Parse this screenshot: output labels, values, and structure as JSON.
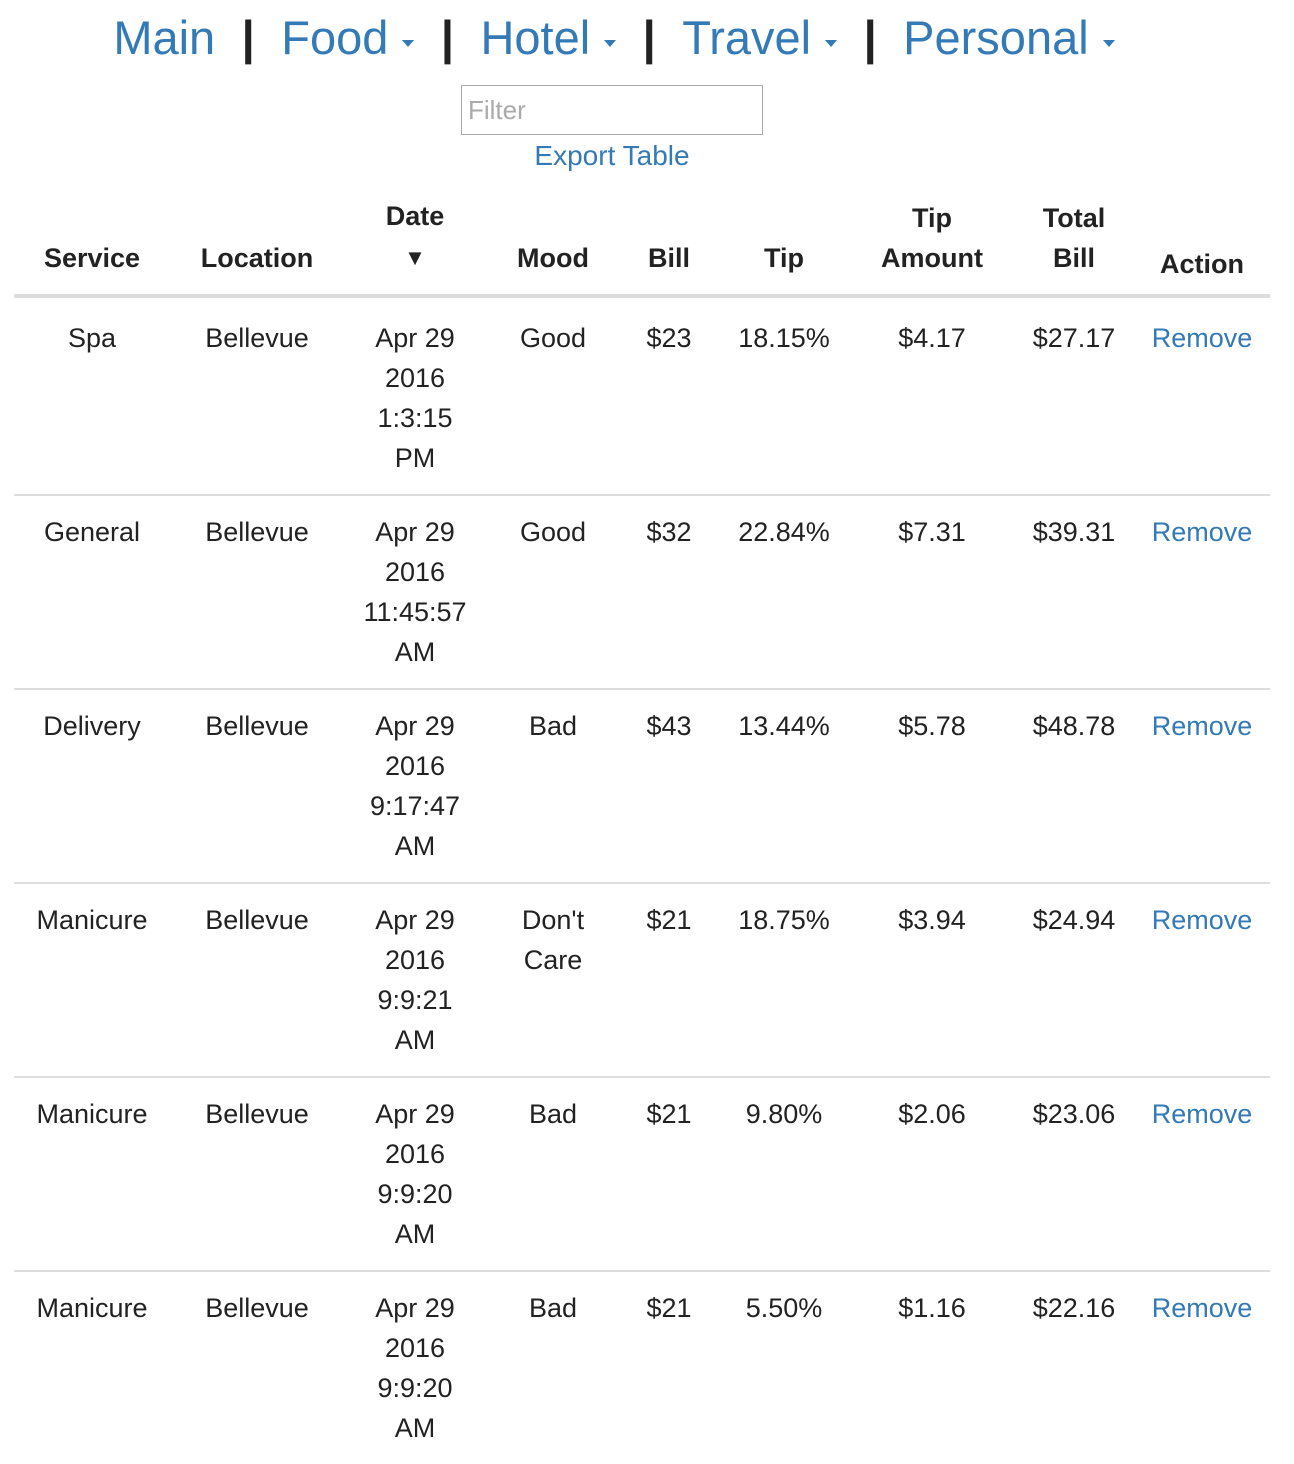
{
  "nav": {
    "main": "Main",
    "food": "Food",
    "hotel": "Hotel",
    "travel": "Travel",
    "personal": "Personal",
    "separator": "|"
  },
  "filter": {
    "placeholder": "Filter"
  },
  "export_label": "Export Table",
  "table": {
    "headers": {
      "service": "Service",
      "location": "Location",
      "date": "Date",
      "sort_indicator": "▼",
      "mood": "Mood",
      "bill": "Bill",
      "tip": "Tip",
      "tip_amount_1": "Tip",
      "tip_amount_2": "Amount",
      "total_bill_1": "Total",
      "total_bill_2": "Bill",
      "action": "Action"
    },
    "rows": [
      {
        "service": "Spa",
        "location": "Bellevue",
        "date1": "Apr 29",
        "date2": "2016",
        "date3": "1:3:15",
        "date4": "PM",
        "mood1": "Good",
        "mood2": "",
        "bill": "$23",
        "tip": "18.15%",
        "tip_amount": "$4.17",
        "total": "$27.17",
        "action": "Remove"
      },
      {
        "service": "General",
        "location": "Bellevue",
        "date1": "Apr 29",
        "date2": "2016",
        "date3": "11:45:57",
        "date4": "AM",
        "mood1": "Good",
        "mood2": "",
        "bill": "$32",
        "tip": "22.84%",
        "tip_amount": "$7.31",
        "total": "$39.31",
        "action": "Remove"
      },
      {
        "service": "Delivery",
        "location": "Bellevue",
        "date1": "Apr 29",
        "date2": "2016",
        "date3": "9:17:47",
        "date4": "AM",
        "mood1": "Bad",
        "mood2": "",
        "bill": "$43",
        "tip": "13.44%",
        "tip_amount": "$5.78",
        "total": "$48.78",
        "action": "Remove"
      },
      {
        "service": "Manicure",
        "location": "Bellevue",
        "date1": "Apr 29",
        "date2": "2016",
        "date3": "9:9:21",
        "date4": "AM",
        "mood1": "Don't",
        "mood2": "Care",
        "bill": "$21",
        "tip": "18.75%",
        "tip_amount": "$3.94",
        "total": "$24.94",
        "action": "Remove"
      },
      {
        "service": "Manicure",
        "location": "Bellevue",
        "date1": "Apr 29",
        "date2": "2016",
        "date3": "9:9:20",
        "date4": "AM",
        "mood1": "Bad",
        "mood2": "",
        "bill": "$21",
        "tip": "9.80%",
        "tip_amount": "$2.06",
        "total": "$23.06",
        "action": "Remove"
      },
      {
        "service": "Manicure",
        "location": "Bellevue",
        "date1": "Apr 29",
        "date2": "2016",
        "date3": "9:9:20",
        "date4": "AM",
        "mood1": "Bad",
        "mood2": "",
        "bill": "$21",
        "tip": "5.50%",
        "tip_amount": "$1.16",
        "total": "$22.16",
        "action": "Remove"
      }
    ]
  },
  "colors": {
    "link": "#337ab7",
    "text": "#222222",
    "border": "#dddddd"
  }
}
